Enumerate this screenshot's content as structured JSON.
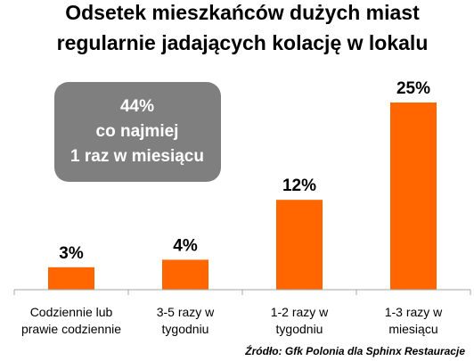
{
  "colors": {
    "bar": "#ff6600",
    "callout_bg": "#7f7f7f",
    "axis": "#a6a6a6"
  },
  "callout": {
    "lines": [
      "44%",
      "co najmiej",
      "1 raz w miesiącu"
    ]
  },
  "source": "Źródło: Gfk Polonia dla Sphinx Restauracje",
  "chart_data": {
    "type": "bar",
    "title": "Odsetek mieszkańców dużych miast regularnie jadających kolację w lokalu",
    "title_lines": [
      "Odsetek mieszkańców dużych miast",
      "regularnie jadających kolację w lokalu"
    ],
    "categories": [
      [
        "Codziennie lub",
        "prawie codziennie"
      ],
      [
        "3-5 razy w",
        "tygodniu"
      ],
      [
        "1-2 razy w",
        "tygodniu"
      ],
      [
        "1-3 razy w",
        "miesiącu"
      ]
    ],
    "values": [
      3,
      4,
      12,
      25
    ],
    "value_labels": [
      "3%",
      "4%",
      "12%",
      "25%"
    ],
    "ylim": [
      0,
      25
    ],
    "grid": false,
    "legend": "none"
  }
}
